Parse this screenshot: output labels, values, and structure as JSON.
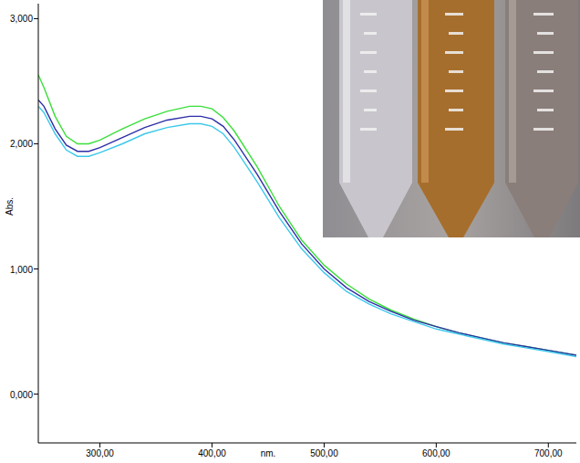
{
  "chart_data": {
    "type": "line",
    "x_label": "nm.",
    "y_label": "Abs.",
    "x": [
      245,
      250,
      260,
      270,
      280,
      290,
      300,
      320,
      340,
      360,
      380,
      390,
      400,
      410,
      420,
      440,
      460,
      480,
      500,
      520,
      540,
      560,
      580,
      600,
      620,
      640,
      660,
      680,
      700,
      725
    ],
    "series": [
      {
        "color": "#3adf3a",
        "values": [
          2.55,
          2.45,
          2.22,
          2.06,
          2.0,
          2.0,
          2.03,
          2.12,
          2.2,
          2.26,
          2.3,
          2.3,
          2.28,
          2.21,
          2.1,
          1.82,
          1.5,
          1.23,
          1.03,
          0.88,
          0.76,
          0.67,
          0.6,
          0.54,
          0.49,
          0.45,
          0.41,
          0.38,
          0.35,
          0.31
        ]
      },
      {
        "color": "#2e2ea8",
        "values": [
          2.35,
          2.3,
          2.12,
          1.99,
          1.94,
          1.94,
          1.97,
          2.05,
          2.13,
          2.19,
          2.22,
          2.22,
          2.2,
          2.14,
          2.03,
          1.76,
          1.46,
          1.2,
          1.0,
          0.85,
          0.74,
          0.66,
          0.59,
          0.54,
          0.49,
          0.45,
          0.41,
          0.38,
          0.35,
          0.31
        ]
      },
      {
        "color": "#3cc8ec",
        "values": [
          2.3,
          2.25,
          2.08,
          1.95,
          1.9,
          1.9,
          1.93,
          2.0,
          2.08,
          2.13,
          2.16,
          2.16,
          2.14,
          2.08,
          1.97,
          1.7,
          1.41,
          1.16,
          0.97,
          0.82,
          0.72,
          0.64,
          0.58,
          0.52,
          0.48,
          0.44,
          0.4,
          0.37,
          0.34,
          0.3
        ]
      }
    ],
    "xlim": [
      245,
      725
    ],
    "ylim": [
      -0.39,
      3.12
    ],
    "xticks": [
      {
        "value": 300,
        "label": "300,00"
      },
      {
        "value": 400,
        "label": "400,00"
      },
      {
        "value": 500,
        "label": "500,00"
      },
      {
        "value": 600,
        "label": "600,00"
      },
      {
        "value": 700,
        "label": "700,00"
      }
    ],
    "yticks": [
      {
        "value": 0,
        "label": "0,000"
      },
      {
        "value": 1,
        "label": "1,000"
      },
      {
        "value": 2,
        "label": "2,000"
      },
      {
        "value": 3,
        "label": "3,000"
      }
    ],
    "grid": false
  }
}
